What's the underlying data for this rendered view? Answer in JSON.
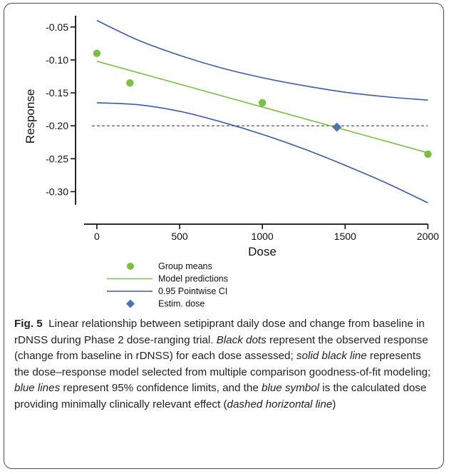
{
  "chart_data": {
    "type": "line",
    "title": "",
    "xlabel": "Dose",
    "ylabel": "Response",
    "xlim": [
      -120,
      2050
    ],
    "ylim": [
      -0.345,
      -0.035
    ],
    "x_ticks": [
      0,
      500,
      1000,
      1500,
      2000
    ],
    "x_tick_labels": [
      "0",
      "500",
      "1000",
      "1500",
      "2000"
    ],
    "y_ticks": [
      -0.05,
      -0.1,
      -0.15,
      -0.2,
      -0.25,
      -0.3
    ],
    "y_tick_labels": [
      "-0.05",
      "-0.10",
      "-0.15",
      "-0.20",
      "-0.25",
      "-0.30"
    ],
    "grid": false,
    "legend_position": "bottom",
    "series": [
      {
        "name": "Group means",
        "kind": "scatter",
        "color": "#7ac143",
        "x": [
          0,
          200,
          1000,
          2000
        ],
        "y": [
          -0.09,
          -0.135,
          -0.165,
          -0.243
        ]
      },
      {
        "name": "Model predictions",
        "kind": "line",
        "color": "#7ac143",
        "x": [
          0,
          2000
        ],
        "y": [
          -0.102,
          -0.241
        ]
      },
      {
        "name": "0.95 Pointwise CI",
        "kind": "line",
        "color": "#3b5bb0",
        "x": [
          0,
          250,
          500,
          750,
          1000,
          1250,
          1500,
          1750,
          2000
        ],
        "y": [
          -0.04,
          -0.07,
          -0.093,
          -0.112,
          -0.127,
          -0.139,
          -0.149,
          -0.156,
          -0.161
        ]
      },
      {
        "name": "",
        "kind": "line",
        "color": "#3b5bb0",
        "x": [
          0,
          250,
          500,
          750,
          1000,
          1250,
          1500,
          1750,
          2000
        ],
        "y": [
          -0.165,
          -0.168,
          -0.178,
          -0.194,
          -0.213,
          -0.235,
          -0.26,
          -0.287,
          -0.317
        ]
      },
      {
        "name": "Estim. dose",
        "kind": "marker",
        "color": "#4a74b8",
        "x": [
          1450
        ],
        "y": [
          -0.202
        ]
      }
    ],
    "reference_line": {
      "y": -0.2,
      "style": "dashed",
      "color": "#555555"
    }
  },
  "caption": {
    "label": "Fig. 5",
    "parts": [
      {
        "text": "Linear relationship between setipiprant daily dose and change from baseline in rDNSS during Phase 2 dose-ranging trial. ",
        "italic": false
      },
      {
        "text": "Black dots",
        "italic": true
      },
      {
        "text": " represent the observed response (change from baseline in rDNSS) for each dose assessed; ",
        "italic": false
      },
      {
        "text": "solid black line",
        "italic": true
      },
      {
        "text": " represents the dose–response model selected from multiple comparison goodness-of-fit modeling; ",
        "italic": false
      },
      {
        "text": "blue lines",
        "italic": true
      },
      {
        "text": " represent 95% confidence limits, and the ",
        "italic": false
      },
      {
        "text": "blue symbol",
        "italic": true
      },
      {
        "text": " is the calculated dose providing minimally clinically relevant effect (",
        "italic": false
      },
      {
        "text": "dashed horizontal line",
        "italic": true
      },
      {
        "text": ")",
        "italic": false
      }
    ]
  }
}
